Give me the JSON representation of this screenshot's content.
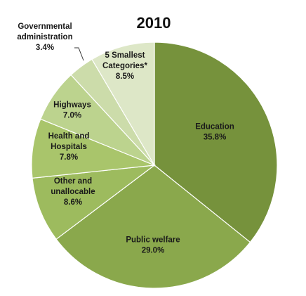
{
  "chart_data": {
    "type": "pie",
    "title": "2010",
    "slices": [
      {
        "label_lines": [
          "Education",
          "35.8%"
        ],
        "value": 35.8,
        "color": "#76923c"
      },
      {
        "label_lines": [
          "Public welfare",
          "29.0%"
        ],
        "value": 29.0,
        "color": "#8aa84c"
      },
      {
        "label_lines": [
          "Other and",
          "unallocable",
          "8.6%"
        ],
        "value": 8.6,
        "color": "#9dbb5e"
      },
      {
        "label_lines": [
          "Health and",
          "Hospitals",
          "7.8%"
        ],
        "value": 7.8,
        "color": "#a9c56b"
      },
      {
        "label_lines": [
          "Highways",
          "7.0%"
        ],
        "value": 7.0,
        "color": "#bcd38e"
      },
      {
        "label_lines": [
          "Governmental",
          "administration",
          "3.4%"
        ],
        "value": 3.4,
        "color": "#ccdcaa"
      },
      {
        "label_lines": [
          "5 Smallest",
          "Categories*",
          "8.5%"
        ],
        "value": 8.5,
        "color": "#dde7c7"
      }
    ]
  }
}
